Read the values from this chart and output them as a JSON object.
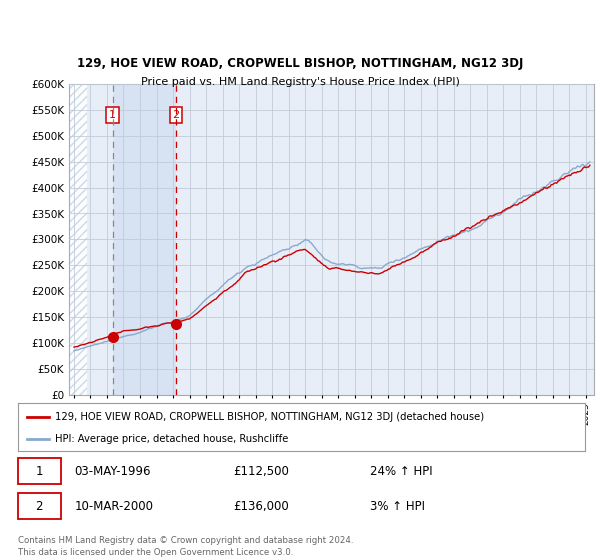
{
  "title_line1": "129, HOE VIEW ROAD, CROPWELL BISHOP, NOTTINGHAM, NG12 3DJ",
  "title_line2": "Price paid vs. HM Land Registry's House Price Index (HPI)",
  "legend_label_red": "129, HOE VIEW ROAD, CROPWELL BISHOP, NOTTINGHAM, NG12 3DJ (detached house)",
  "legend_label_blue": "HPI: Average price, detached house, Rushcliffe",
  "transaction1_date": "03-MAY-1996",
  "transaction1_price": "£112,500",
  "transaction1_hpi": "24% ↑ HPI",
  "transaction2_date": "10-MAR-2000",
  "transaction2_price": "£136,000",
  "transaction2_hpi": "3% ↑ HPI",
  "footer": "Contains HM Land Registry data © Crown copyright and database right 2024.\nThis data is licensed under the Open Government Licence v3.0.",
  "ylim": [
    0,
    600000
  ],
  "yticks": [
    0,
    50000,
    100000,
    150000,
    200000,
    250000,
    300000,
    350000,
    400000,
    450000,
    500000,
    550000,
    600000
  ],
  "ytick_labels": [
    "£0",
    "£50K",
    "£100K",
    "£150K",
    "£200K",
    "£250K",
    "£300K",
    "£350K",
    "£400K",
    "£450K",
    "£500K",
    "£550K",
    "£600K"
  ],
  "xlim_start": 1993.7,
  "xlim_end": 2025.5,
  "transaction1_x": 1996.34,
  "transaction2_x": 2000.19,
  "transaction1_y": 112500,
  "transaction2_y": 136000,
  "bg_color": "#e8eef8",
  "shaded_color": "#d4e0f0",
  "hatch_color": "#c8d4e4",
  "grid_color": "#c0ccd8",
  "red_color": "#cc0000",
  "blue_color": "#88aacc",
  "vline1_color": "#888888",
  "vline2_color": "#cc0000"
}
